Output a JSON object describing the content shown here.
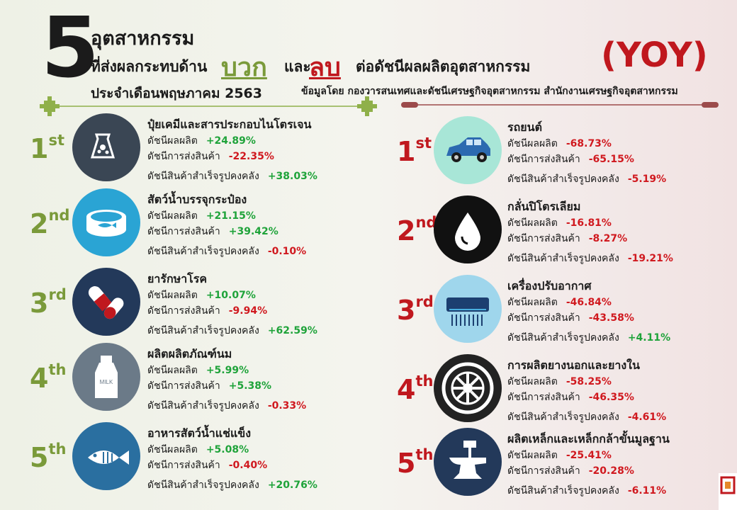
{
  "header": {
    "number": "5",
    "line1": "อุตสาหกรรม",
    "line2_prefix": "ที่ส่งผลกระทบด้าน",
    "positive": "บวก",
    "and": "และ",
    "negative": "ลบ",
    "line2_suffix": "ต่อดัชนีผลผลิตอุตสาหกรรม",
    "yoy": "(YOY)",
    "line3": "ประจำเดือนพฤษภาคม  2563",
    "source": "ข้อมูลโดย  กองวารสนเทศและดัชนีเศรษฐกิจอุตสาหกรรม  สำนักงานเศรษฐกิจอุตสาหกรรม"
  },
  "labels": {
    "production": "ดัชนีผลผลิต",
    "shipment": "ดัชนีการส่งสินค้า",
    "inventory": "ดัชนีสินค้าสำเร็จรูปคงคลัง"
  },
  "colors": {
    "positive": "#7a9a3a",
    "negative": "#c0181e",
    "up": "#1fa33a",
    "down": "#d0191f"
  },
  "positive_list": [
    {
      "rank": "1",
      "suffix": "st",
      "title": "ปุ๋ยเคมีและสารประกอบไนโตรเจน",
      "icon": "fertilizer-bag-icon",
      "production": "+24.89%",
      "shipment": "-22.35%",
      "inventory": "+38.03%"
    },
    {
      "rank": "2",
      "suffix": "nd",
      "title": "สัตว์น้ำบรรจุกระป๋อง",
      "icon": "canned-fish-icon",
      "production": "+21.15%",
      "shipment": "+39.42%",
      "inventory": "-0.10%"
    },
    {
      "rank": "3",
      "suffix": "rd",
      "title": "ยารักษาโรค",
      "icon": "medicine-capsule-icon",
      "production": "+10.07%",
      "shipment": "-9.94%",
      "inventory": "+62.59%"
    },
    {
      "rank": "4",
      "suffix": "th",
      "title": "ผลิตผลิตภัณฑ์นม",
      "icon": "milk-bottle-icon",
      "production": "+5.99%",
      "shipment": "+5.38%",
      "inventory": "-0.33%"
    },
    {
      "rank": "5",
      "suffix": "th",
      "title": "อาหารสัตว์น้ำแช่แข็ง",
      "icon": "fish-icon",
      "production": "+5.08%",
      "shipment": "-0.40%",
      "inventory": "+20.76%"
    }
  ],
  "negative_list": [
    {
      "rank": "1",
      "suffix": "st",
      "title": "รถยนต์",
      "icon": "car-icon",
      "production": "-68.73%",
      "shipment": "-65.15%",
      "inventory": "-5.19%"
    },
    {
      "rank": "2",
      "suffix": "nd",
      "title": "กลั่นปิโตรเลียม",
      "icon": "oil-drop-icon",
      "production": "-16.81%",
      "shipment": "-8.27%",
      "inventory": "-19.21%"
    },
    {
      "rank": "3",
      "suffix": "rd",
      "title": "เครื่องปรับอากาศ",
      "icon": "air-conditioner-icon",
      "production": "-46.84%",
      "shipment": "-43.58%",
      "inventory": "+4.11%"
    },
    {
      "rank": "4",
      "suffix": "th",
      "title": "การผลิตยางนอกและยางใน",
      "icon": "tire-icon",
      "production": "-58.25%",
      "shipment": "-46.35%",
      "inventory": "-4.61%"
    },
    {
      "rank": "5",
      "suffix": "th",
      "title": "ผลิตเหล็กและเหล็กกล้าขั้นมูลฐาน",
      "icon": "anvil-icon",
      "production": "-25.41%",
      "shipment": "-20.28%",
      "inventory": "-6.11%"
    }
  ]
}
